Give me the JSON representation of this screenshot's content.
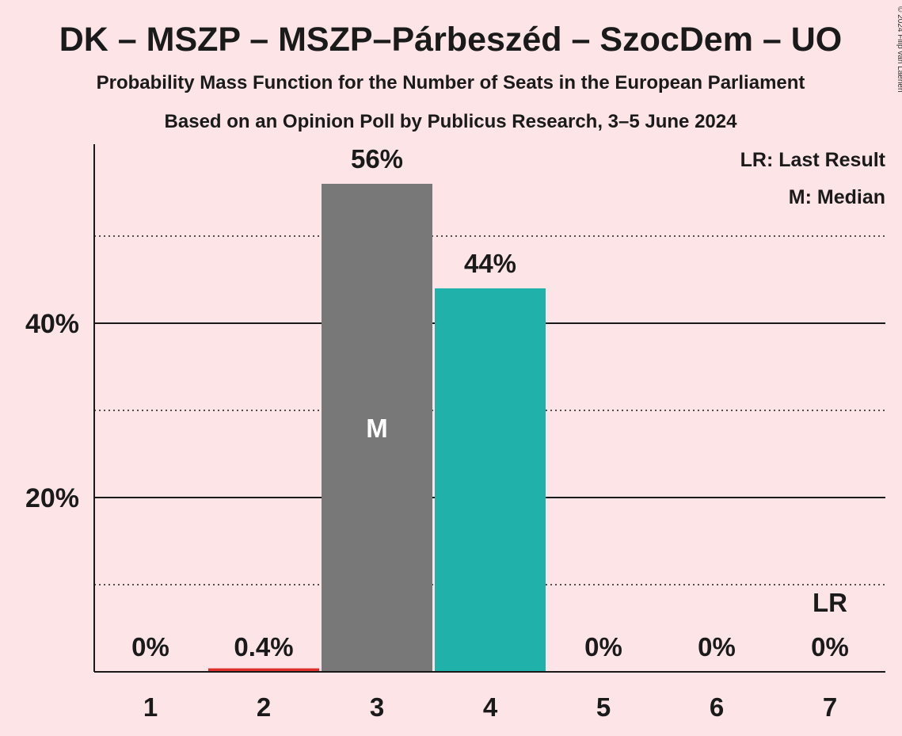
{
  "title": "DK – MSZP – MSZP–Párbeszéd – SzocDem – UO",
  "subtitle": "Probability Mass Function for the Number of Seats in the European Parliament",
  "subtitle2": "Based on an Opinion Poll by Publicus Research, 3–5 June 2024",
  "copyright": "© 2024 Filip van Laenen",
  "legend": {
    "last_result": "LR: Last Result",
    "median": "M: Median"
  },
  "colors": {
    "background": "#fce4e7",
    "median_bar": "#787878",
    "main_bar": "#20b2aa",
    "last_result_line": "#e0302c",
    "text": "#1a1a1a"
  },
  "chart_data": {
    "type": "bar",
    "categories": [
      "1",
      "2",
      "3",
      "4",
      "5",
      "6",
      "7"
    ],
    "values": [
      0,
      0.4,
      56,
      44,
      0,
      0,
      0
    ],
    "value_labels": [
      "0%",
      "0.4%",
      "56%",
      "44%",
      "0%",
      "0%",
      "0%"
    ],
    "bar_colors": [
      "#20b2aa",
      "#e0302c",
      "#787878",
      "#20b2aa",
      "#20b2aa",
      "#20b2aa",
      "#20b2aa"
    ],
    "ylim": [
      0,
      60
    ],
    "yticks_major": [
      20,
      40
    ],
    "ytick_labels": [
      "20%",
      "40%"
    ],
    "yticks_minor": [
      10,
      30,
      50
    ],
    "median_category": "3",
    "median_label": "M",
    "last_result_category": "7",
    "last_result_label": "LR",
    "xlabel": "",
    "ylabel": "",
    "legend_position": "top-right",
    "grid": true
  }
}
